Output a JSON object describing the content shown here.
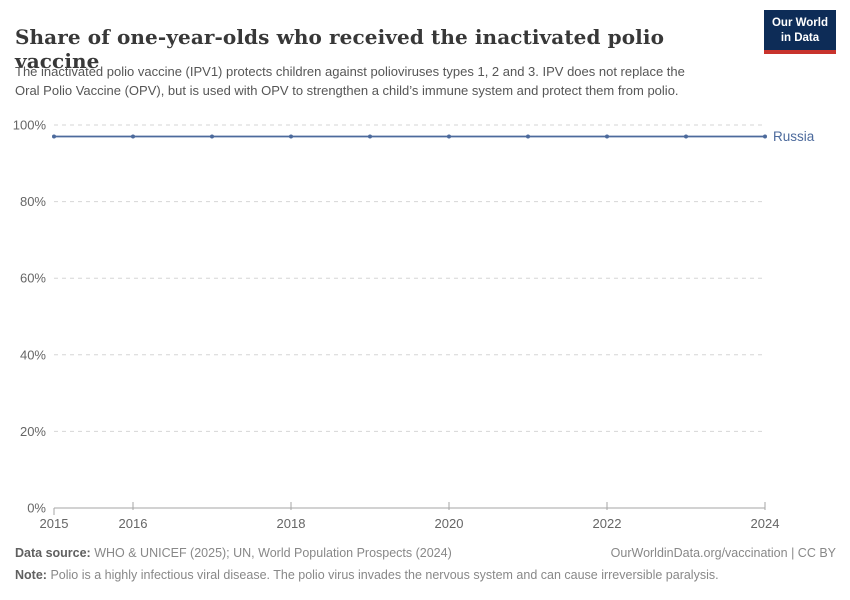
{
  "header": {
    "title": "Share of one-year-olds who received the inactivated polio vaccine",
    "subtitle": "The inactivated polio vaccine (IPV1) protects children against polioviruses types 1, 2 and 3. IPV does not replace the Oral Polio Vaccine (OPV), but is used with OPV to strengthen a child’s immune system and protect them from polio.",
    "logo": {
      "line1": "Our World",
      "line2": "in Data"
    }
  },
  "colors": {
    "series_russia": "#4c6a9c",
    "logo_background": "#0d2c57",
    "logo_accent": "#c8332d",
    "gridline": "#d6d6d6",
    "axis_line": "#a6a6a6",
    "axis_text": "#666666"
  },
  "chart_data": {
    "type": "line",
    "title": "Share of one-year-olds who received the inactivated polio vaccine",
    "x": [
      2015,
      2016,
      2017,
      2018,
      2019,
      2020,
      2021,
      2022,
      2023,
      2024
    ],
    "series": [
      {
        "name": "Russia",
        "color": "#4c6a9c",
        "values": [
          97,
          97,
          97,
          97,
          97,
          97,
          97,
          97,
          97,
          97
        ]
      }
    ],
    "xlim": [
      2015,
      2024
    ],
    "ylim": [
      0,
      100
    ],
    "x_tick_labels": [
      2015,
      2016,
      2018,
      2020,
      2022,
      2024
    ],
    "y_tick_values": [
      0,
      20,
      40,
      60,
      80,
      100
    ],
    "y_tick_suffix": "%",
    "xlabel": "",
    "ylabel": "",
    "grid": "horizontal-dashed",
    "legend_position": "end-of-line-label"
  },
  "footer": {
    "source_label": "Data source:",
    "source_text": "WHO & UNICEF (2025); UN, World Population Prospects (2024)",
    "link": "OurWorldinData.org/vaccination",
    "separator": " | ",
    "license": "CC BY",
    "note_label": "Note:",
    "note_text": "Polio is a highly infectious viral disease. The polio virus invades the nervous system and can cause irreversible paralysis."
  }
}
